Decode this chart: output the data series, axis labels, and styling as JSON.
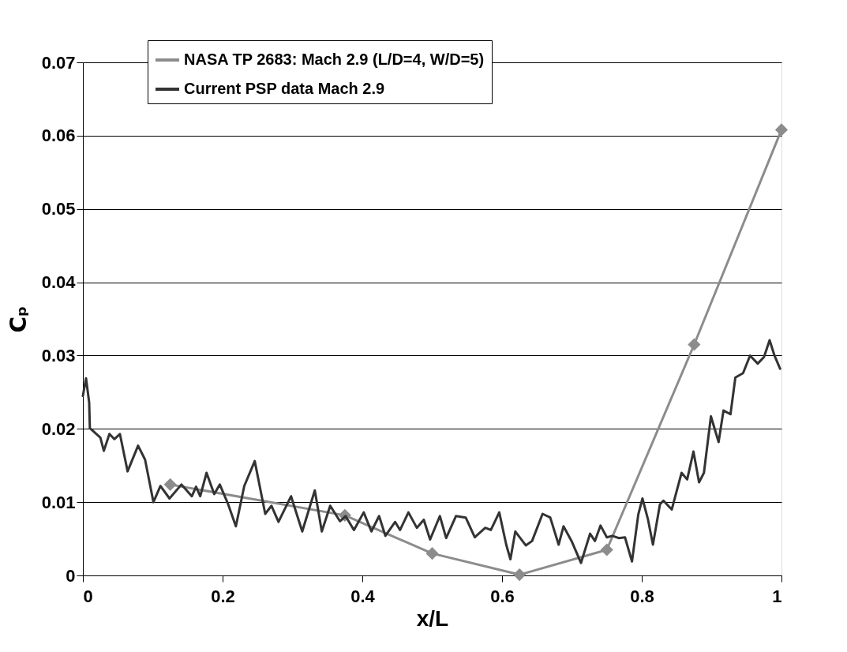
{
  "chart_data": {
    "type": "line",
    "xlabel": "x/L",
    "ylabel": "Cₚ",
    "xlim": [
      0,
      1
    ],
    "xticks": [
      0,
      0.2,
      0.4,
      0.6,
      0.8,
      1
    ],
    "ylim": [
      0,
      0.07
    ],
    "yticks": [
      0,
      0.01,
      0.02,
      0.03,
      0.04,
      0.05,
      0.06,
      0.07
    ],
    "grid": "y",
    "legend": "top",
    "line_style": "solid",
    "series": [
      {
        "name": "NASA TP 2683: Mach 2.9 (L/D=4, W/D=5)",
        "color": "#8c8c8c",
        "marker": "diamond",
        "x": [
          0.125,
          0.375,
          0.5,
          0.625,
          0.75,
          0.875,
          1.0
        ],
        "values": [
          0.0124,
          0.0082,
          0.003,
          0.0001,
          0.0035,
          0.0315,
          0.0608
        ]
      },
      {
        "name": "Current PSP data Mach 2.9",
        "color": "#333333",
        "marker": "none",
        "x": [
          0.0,
          0.0045,
          0.009,
          0.01,
          0.025,
          0.03,
          0.038,
          0.045,
          0.053,
          0.064,
          0.079,
          0.089,
          0.101,
          0.111,
          0.124,
          0.141,
          0.156,
          0.162,
          0.168,
          0.177,
          0.188,
          0.196,
          0.208,
          0.219,
          0.231,
          0.246,
          0.261,
          0.27,
          0.28,
          0.298,
          0.314,
          0.332,
          0.342,
          0.354,
          0.368,
          0.376,
          0.388,
          0.402,
          0.413,
          0.424,
          0.433,
          0.447,
          0.454,
          0.466,
          0.478,
          0.488,
          0.497,
          0.511,
          0.52,
          0.534,
          0.548,
          0.561,
          0.576,
          0.584,
          0.596,
          0.606,
          0.612,
          0.619,
          0.634,
          0.643,
          0.658,
          0.669,
          0.681,
          0.688,
          0.7,
          0.713,
          0.726,
          0.733,
          0.741,
          0.75,
          0.758,
          0.767,
          0.776,
          0.786,
          0.795,
          0.801,
          0.809,
          0.816,
          0.826,
          0.831,
          0.843,
          0.848,
          0.857,
          0.865,
          0.874,
          0.882,
          0.889,
          0.899,
          0.91,
          0.917,
          0.927,
          0.934,
          0.945,
          0.955,
          0.966,
          0.975,
          0.983,
          0.99,
          0.998
        ],
        "values": [
          0.0245,
          0.0269,
          0.0236,
          0.0201,
          0.0188,
          0.017,
          0.0193,
          0.0186,
          0.0193,
          0.0142,
          0.0177,
          0.0158,
          0.01,
          0.0122,
          0.0105,
          0.0124,
          0.0108,
          0.0121,
          0.0108,
          0.014,
          0.0111,
          0.0124,
          0.0097,
          0.0067,
          0.0122,
          0.0156,
          0.0084,
          0.0095,
          0.0073,
          0.0108,
          0.006,
          0.0116,
          0.006,
          0.0095,
          0.0074,
          0.0081,
          0.0062,
          0.0086,
          0.006,
          0.0081,
          0.0054,
          0.0073,
          0.0062,
          0.0086,
          0.0065,
          0.0076,
          0.0049,
          0.0081,
          0.0051,
          0.0081,
          0.0079,
          0.0052,
          0.0065,
          0.0062,
          0.0086,
          0.0042,
          0.0022,
          0.006,
          0.0041,
          0.0047,
          0.0084,
          0.0079,
          0.0042,
          0.0067,
          0.0046,
          0.0017,
          0.0057,
          0.0047,
          0.0068,
          0.0052,
          0.0054,
          0.0051,
          0.0052,
          0.0019,
          0.0083,
          0.0105,
          0.0076,
          0.0042,
          0.0097,
          0.0102,
          0.009,
          0.0108,
          0.014,
          0.0131,
          0.0169,
          0.0127,
          0.014,
          0.0217,
          0.0182,
          0.0225,
          0.022,
          0.027,
          0.0276,
          0.03,
          0.0289,
          0.0298,
          0.0321,
          0.03,
          0.0282
        ]
      }
    ]
  }
}
